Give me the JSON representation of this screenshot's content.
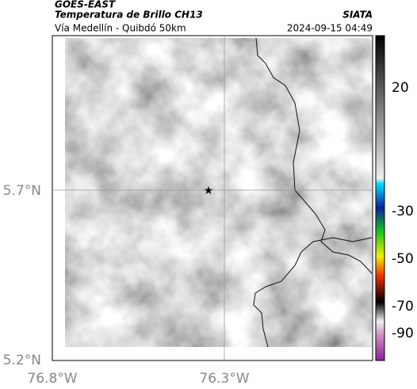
{
  "header": {
    "title": "GOES-EAST",
    "subtitle": "Temperatura de Brillo CH13",
    "route": "Vía Medellín - Quibdó 50km",
    "source": "SIATA",
    "timestamp": "2024-09-15 04:49"
  },
  "axes": {
    "lat_labels": [
      "5.7°N",
      "5.2°N"
    ],
    "lon_labels": [
      "76.8°W",
      "76.3°W"
    ]
  },
  "colorbar": {
    "ticks": [
      20,
      -30,
      -50,
      -70,
      -90
    ]
  }
}
